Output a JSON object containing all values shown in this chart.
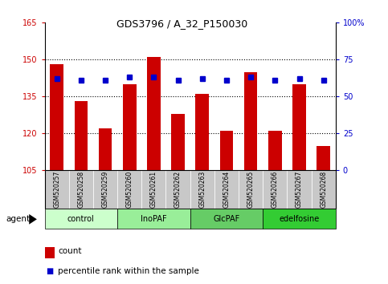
{
  "title": "GDS3796 / A_32_P150030",
  "samples": [
    "GSM520257",
    "GSM520258",
    "GSM520259",
    "GSM520260",
    "GSM520261",
    "GSM520262",
    "GSM520263",
    "GSM520264",
    "GSM520265",
    "GSM520266",
    "GSM520267",
    "GSM520268"
  ],
  "counts": [
    148,
    133,
    122,
    140,
    151,
    128,
    136,
    121,
    145,
    121,
    140,
    115
  ],
  "percentiles": [
    62,
    61,
    61,
    63,
    63,
    61,
    62,
    61,
    63,
    61,
    62,
    61
  ],
  "ymin": 105,
  "ymax": 165,
  "yticks": [
    105,
    120,
    135,
    150,
    165
  ],
  "yright_ticks": [
    0,
    25,
    50,
    75,
    100
  ],
  "yright_labels": [
    "0",
    "25",
    "50",
    "75",
    "100%"
  ],
  "groups": [
    {
      "label": "control",
      "start": 0,
      "end": 3,
      "color": "#ccffcc"
    },
    {
      "label": "InoPAF",
      "start": 3,
      "end": 6,
      "color": "#99ee99"
    },
    {
      "label": "GlcPAF",
      "start": 6,
      "end": 9,
      "color": "#66cc66"
    },
    {
      "label": "edelfosine",
      "start": 9,
      "end": 12,
      "color": "#33cc33"
    }
  ],
  "bar_color": "#cc0000",
  "dot_color": "#0000cc",
  "grid_color": "#000000",
  "axis_color_left": "#cc0000",
  "axis_color_right": "#0000cc",
  "background_xtick": "#c8c8c8",
  "legend_count_color": "#cc0000",
  "legend_dot_color": "#0000cc"
}
